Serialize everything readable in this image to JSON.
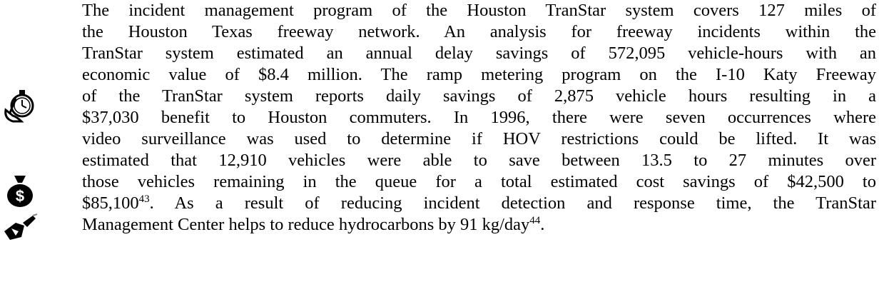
{
  "paragraph": {
    "lines": [
      {
        "text": "The incident management program of the Houston TranStar system covers 127 miles of"
      },
      {
        "text": "the Houston Texas freeway network.  An analysis for freeway incidents within the"
      },
      {
        "text": "TranStar system estimated an annual delay savings of 572,095 vehicle-hours with an"
      },
      {
        "text": "economic value of $8.4 million.  The ramp metering program on the I-10 Katy Freeway"
      },
      {
        "text": "of the TranStar system reports daily savings of 2,875 vehicle hours resulting in a"
      },
      {
        "text": "$37,030 benefit to Houston commuters.  In 1996, there were seven occurrences where"
      },
      {
        "text": "video surveillance was used to determine if HOV restrictions could be lifted.  It was"
      },
      {
        "text": "estimated that 12,910 vehicles were able to save between 13.5 to 27 minutes over"
      },
      {
        "text": "those vehicles remaining in the queue for a total estimated cost savings of $42,500 to"
      },
      {
        "text": "$85,100",
        "sup": "43",
        "rest": ".  As a result of reducing incident detection and response time, the TranStar"
      },
      {
        "text": "Management Center helps to reduce hydrocarbons by 91 kg/day",
        "sup": "44",
        "rest": "."
      }
    ]
  }
}
